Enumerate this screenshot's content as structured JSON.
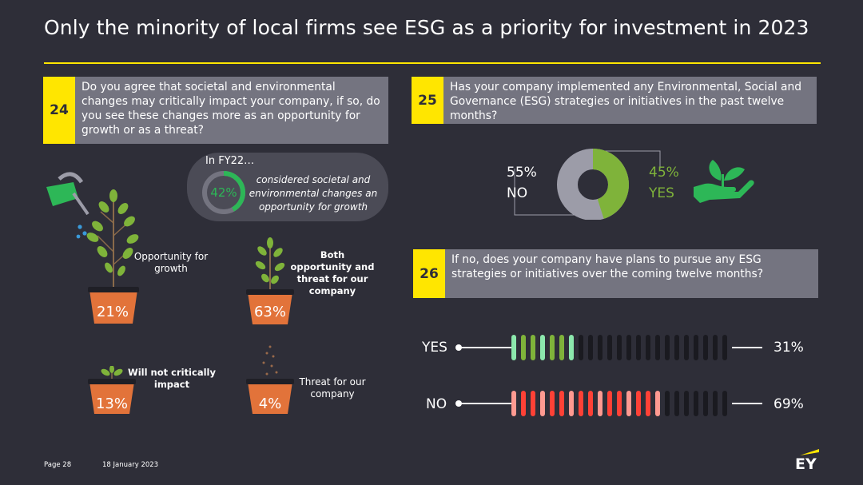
{
  "title": "Only the minority of local firms see ESG as a priority for investment in 2023",
  "colors": {
    "yellow": "#ffe600",
    "background": "#2e2e38",
    "grey_box": "#747480",
    "green": "#2db757",
    "light_green": "#8ce8ad",
    "olive_green": "#7fb33a",
    "red": "#ff4136",
    "salmon": "#ff9a91",
    "pot": "#e2733a"
  },
  "q24": {
    "number": "24",
    "text": "Do you agree that societal and environmental changes may critically impact your company, if so, do you see these changes more as an opportunity for growth or as a threat?",
    "fy_label": "In FY22…",
    "fy_text": "considered societal and environmental changes an opportunity for growth",
    "fy_pct": "42%",
    "fy_value": 42,
    "options": [
      {
        "label": "Opportunity for growth",
        "pct": "21%"
      },
      {
        "label": "Both opportunity and threat for our company",
        "pct": "63%"
      },
      {
        "label": "Will not critically impact",
        "pct": "13%"
      },
      {
        "label": "Threat for our company",
        "pct": "4%"
      }
    ]
  },
  "q25": {
    "number": "25",
    "text": "Has your company implemented any Environmental, Social and Governance (ESG) strategies or initiatives in the past twelve months?",
    "no_pct": "55%",
    "no_label": "NO",
    "yes_pct": "45%",
    "yes_label": "YES"
  },
  "q26": {
    "number": "26",
    "text": "If no, does your company have plans to pursue any ESG strategies or initiatives over the coming twelve months?",
    "rows": [
      {
        "label": "YES",
        "pct": "31%",
        "value": 31
      },
      {
        "label": "NO",
        "pct": "69%",
        "value": 69
      }
    ]
  },
  "chart_data": [
    {
      "type": "pie",
      "title": "Has your company implemented any Environmental, Social and Governance (ESG) strategies or initiatives in the past twelve months?",
      "categories": [
        "NO",
        "YES"
      ],
      "values": [
        55,
        45
      ]
    },
    {
      "type": "bar",
      "title": "If no, does your company have plans to pursue any ESG strategies or initiatives over the coming twelve months?",
      "categories": [
        "YES",
        "NO"
      ],
      "values": [
        31,
        69
      ]
    },
    {
      "type": "table",
      "title": "Do you agree that societal and environmental changes may critically impact your company, if so, do you see these changes more as an opportunity for growth or as a threat?",
      "categories": [
        "Opportunity for growth",
        "Both opportunity and threat for our company",
        "Will not critically impact",
        "Threat for our company"
      ],
      "values": [
        21,
        63,
        13,
        4
      ]
    }
  ],
  "footer": {
    "page": "Page 28",
    "date": "18 January 2023",
    "logo": "EY"
  }
}
